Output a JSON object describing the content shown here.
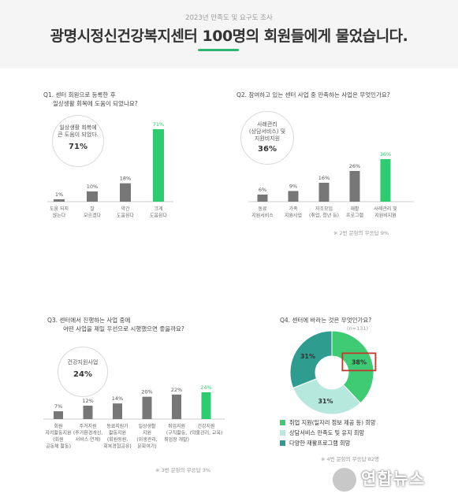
{
  "header": {
    "subtitle": "2023년 만족도 및 요구도 조사",
    "title": "광명시정신건강복지센터 100명의 회원들에게 물었습니다."
  },
  "colors": {
    "accent": "#2ecc71",
    "bar_gray": "#777777",
    "q4_green": "#3ecb74",
    "q4_light": "#b7e8dd",
    "q4_teal": "#2e9c8e",
    "highlight_box": "#c0392b"
  },
  "chart_data": [
    {
      "id": "q1",
      "type": "bar",
      "title_lines": [
        "Q1. 센터 회원으로 등록한 후",
        "일상생활 회복에 도움이 되었나요?"
      ],
      "categories": [
        [
          "도움 되지",
          "않는다"
        ],
        [
          "잘",
          "모르겠다"
        ],
        [
          "약간",
          "도움된다"
        ],
        [
          "크게",
          "도움된다"
        ]
      ],
      "values": [
        1,
        10,
        18,
        71
      ],
      "value_labels": [
        "1%",
        "10%",
        "18%",
        "71%"
      ],
      "highlight_index": 3,
      "bubble": {
        "lines": [
          "일상생활 회복에",
          "큰 도움이 되었다."
        ],
        "percent": "71%"
      }
    },
    {
      "id": "q2",
      "type": "bar",
      "title_lines": [
        "Q2. 참여하고 있는 센터 사업 중 만족하는 사업은 무엇인가요?"
      ],
      "categories": [
        [
          "동료",
          "지원서비스"
        ],
        [
          "가족",
          "지원사업"
        ],
        [
          "자조모임",
          "(취업, 청년 등)"
        ],
        [
          "재활",
          "프로그램"
        ],
        [
          "사례관리 및",
          "지원비지원"
        ]
      ],
      "values": [
        6,
        9,
        16,
        26,
        36
      ],
      "value_labels": [
        "6%",
        "9%",
        "16%",
        "26%",
        "36%"
      ],
      "highlight_index": 4,
      "bubble": {
        "lines": [
          "사례관리",
          "(상담서비스) 및",
          "지원비지원"
        ],
        "percent": "36%"
      },
      "note": "※ 2번 문항의 무응답 9%"
    },
    {
      "id": "q3",
      "type": "bar",
      "title_lines": [
        "Q3. 센터에서 진행하는 사업 중에",
        "어떤 사업을 제일 우선으로 시행했으면 좋을까요?"
      ],
      "categories": [
        [
          "회원",
          "자치활동지원",
          "(회원",
          "공동체 활동)"
        ],
        [
          "주거지원",
          "(주거환경개선,",
          "서비스 연계)"
        ],
        [
          "동료지원가",
          "활동지원",
          "(회원동원,",
          "회복경험공유)"
        ],
        [
          "일상생활",
          "지원",
          "(위생관리,",
          "문화여가)"
        ],
        [
          "취업지원",
          "(구직활동,",
          "취업장 개발)"
        ],
        [
          "건강지원",
          "(약물관리, 교육)"
        ]
      ],
      "values": [
        7,
        12,
        14,
        20,
        22,
        24
      ],
      "value_labels": [
        "7%",
        "12%",
        "14%",
        "20%",
        "22%",
        "24%"
      ],
      "highlight_index": 5,
      "bubble": {
        "lines": [
          "건강지원사업"
        ],
        "percent": "24%"
      },
      "note": "※ 3번 문항의 무응답 3%"
    },
    {
      "id": "q4",
      "type": "pie",
      "donut": true,
      "title_lines": [
        "Q4. 센터에 바라는 것은 무엇인가요?"
      ],
      "subtitle": "(n=131)",
      "slices": [
        {
          "label": "취업 지원(일자리 정보 제공 등) 희망",
          "value": 38,
          "value_label": "38%",
          "color": "#3ecb74"
        },
        {
          "label": "상담서비스 만족도 및 유지 희망",
          "value": 31,
          "value_label": "31%",
          "color": "#b7e8dd"
        },
        {
          "label": "다양한 재활프로그램 희망",
          "value": 31,
          "value_label": "31%",
          "color": "#2e9c8e"
        }
      ],
      "highlight_index": 0,
      "note": "※ 4번 문항의 무응답 82명"
    }
  ],
  "watermark": {
    "text": "연합뉴스"
  }
}
